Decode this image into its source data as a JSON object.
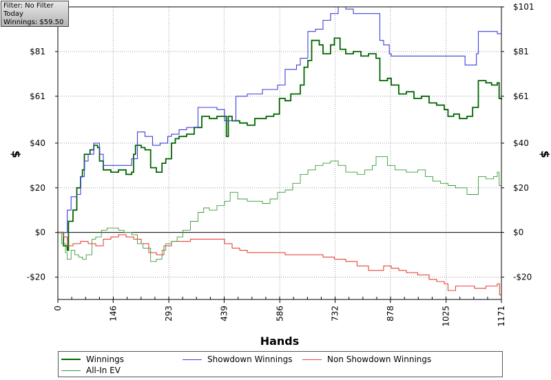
{
  "info_box": {
    "filter": "Filter: No Filter",
    "period": "Today",
    "winnings": "Winnings: $59.50"
  },
  "chart_data": {
    "type": "line",
    "xlabel": "Hands",
    "ylabel": "$",
    "xlim": [
      0,
      1171
    ],
    "ylim": [
      -30,
      101
    ],
    "x_ticks": [
      0,
      146,
      293,
      439,
      586,
      732,
      878,
      1025,
      1171
    ],
    "x_tick_labels": [
      "0",
      "146",
      "293",
      "439",
      "586",
      "732",
      "878",
      "1025",
      "1171"
    ],
    "y_ticks": [
      -20,
      0,
      20,
      40,
      61,
      81,
      101
    ],
    "y_tick_labels": [
      "-$20",
      "$0",
      "$20",
      "$40",
      "$61",
      "$81",
      "$101"
    ],
    "grid": true,
    "legend_position": "bottom",
    "series": [
      {
        "name": "Winnings",
        "color": "#006400",
        "width": 1.8,
        "points": [
          [
            0,
            0
          ],
          [
            15,
            -6
          ],
          [
            25,
            -8
          ],
          [
            28,
            5
          ],
          [
            40,
            10
          ],
          [
            50,
            20
          ],
          [
            60,
            25
          ],
          [
            65,
            28
          ],
          [
            70,
            35
          ],
          [
            85,
            37
          ],
          [
            95,
            39
          ],
          [
            105,
            38
          ],
          [
            110,
            32
          ],
          [
            120,
            28
          ],
          [
            140,
            27
          ],
          [
            160,
            28
          ],
          [
            180,
            26
          ],
          [
            195,
            27
          ],
          [
            200,
            35
          ],
          [
            205,
            39
          ],
          [
            220,
            38
          ],
          [
            230,
            37
          ],
          [
            245,
            29
          ],
          [
            260,
            27
          ],
          [
            275,
            31
          ],
          [
            285,
            33
          ],
          [
            300,
            40
          ],
          [
            310,
            42
          ],
          [
            320,
            43
          ],
          [
            340,
            44
          ],
          [
            360,
            47
          ],
          [
            380,
            52
          ],
          [
            400,
            51
          ],
          [
            420,
            52
          ],
          [
            445,
            43
          ],
          [
            450,
            52
          ],
          [
            460,
            50
          ],
          [
            480,
            49
          ],
          [
            500,
            48
          ],
          [
            520,
            51
          ],
          [
            550,
            52
          ],
          [
            570,
            53
          ],
          [
            585,
            60
          ],
          [
            600,
            59
          ],
          [
            615,
            62
          ],
          [
            640,
            66
          ],
          [
            650,
            74
          ],
          [
            660,
            77
          ],
          [
            670,
            86
          ],
          [
            690,
            84
          ],
          [
            700,
            80
          ],
          [
            720,
            84
          ],
          [
            730,
            87
          ],
          [
            745,
            82
          ],
          [
            760,
            80
          ],
          [
            780,
            81
          ],
          [
            800,
            79
          ],
          [
            820,
            80
          ],
          [
            840,
            78
          ],
          [
            850,
            68
          ],
          [
            870,
            69
          ],
          [
            880,
            66
          ],
          [
            900,
            62
          ],
          [
            920,
            63
          ],
          [
            940,
            60
          ],
          [
            960,
            61
          ],
          [
            980,
            58
          ],
          [
            1000,
            57
          ],
          [
            1020,
            55
          ],
          [
            1030,
            52
          ],
          [
            1045,
            53
          ],
          [
            1060,
            51
          ],
          [
            1080,
            52
          ],
          [
            1095,
            56
          ],
          [
            1110,
            68
          ],
          [
            1130,
            67
          ],
          [
            1145,
            66
          ],
          [
            1160,
            67
          ],
          [
            1165,
            60
          ],
          [
            1171,
            59.5
          ]
        ]
      },
      {
        "name": "Showdown Winnings",
        "color": "#3c3cdc",
        "width": 1.1,
        "points": [
          [
            0,
            0
          ],
          [
            18,
            0
          ],
          [
            25,
            10
          ],
          [
            35,
            16
          ],
          [
            50,
            17
          ],
          [
            60,
            25
          ],
          [
            70,
            32
          ],
          [
            80,
            35
          ],
          [
            95,
            40
          ],
          [
            110,
            35
          ],
          [
            120,
            30
          ],
          [
            140,
            30
          ],
          [
            160,
            30
          ],
          [
            180,
            30
          ],
          [
            195,
            33
          ],
          [
            210,
            45
          ],
          [
            230,
            43
          ],
          [
            250,
            39
          ],
          [
            270,
            40
          ],
          [
            290,
            43
          ],
          [
            300,
            44
          ],
          [
            320,
            46
          ],
          [
            340,
            47
          ],
          [
            370,
            56
          ],
          [
            400,
            56
          ],
          [
            420,
            55
          ],
          [
            440,
            50
          ],
          [
            470,
            61
          ],
          [
            500,
            62
          ],
          [
            540,
            64
          ],
          [
            570,
            64
          ],
          [
            580,
            66
          ],
          [
            600,
            73
          ],
          [
            630,
            75
          ],
          [
            640,
            78
          ],
          [
            660,
            90
          ],
          [
            680,
            91
          ],
          [
            700,
            95
          ],
          [
            720,
            98
          ],
          [
            740,
            101
          ],
          [
            760,
            100
          ],
          [
            780,
            98
          ],
          [
            800,
            98
          ],
          [
            830,
            98
          ],
          [
            850,
            86
          ],
          [
            860,
            84
          ],
          [
            875,
            80
          ],
          [
            880,
            79
          ],
          [
            900,
            79
          ],
          [
            950,
            79
          ],
          [
            1000,
            79
          ],
          [
            1040,
            79
          ],
          [
            1060,
            79
          ],
          [
            1075,
            75
          ],
          [
            1100,
            75
          ],
          [
            1105,
            80
          ],
          [
            1110,
            90
          ],
          [
            1120,
            90
          ],
          [
            1140,
            90
          ],
          [
            1160,
            89
          ],
          [
            1171,
            89
          ]
        ]
      },
      {
        "name": "Non Showdown Winnings",
        "color": "#e8443a",
        "width": 1.1,
        "points": [
          [
            0,
            0
          ],
          [
            15,
            -2
          ],
          [
            25,
            -6
          ],
          [
            40,
            -5
          ],
          [
            60,
            -4
          ],
          [
            80,
            -5
          ],
          [
            100,
            -6
          ],
          [
            120,
            -3
          ],
          [
            140,
            -2
          ],
          [
            160,
            -1
          ],
          [
            180,
            -2
          ],
          [
            200,
            -3
          ],
          [
            220,
            -5
          ],
          [
            240,
            -9
          ],
          [
            260,
            -10
          ],
          [
            280,
            -6
          ],
          [
            300,
            -4
          ],
          [
            320,
            -4
          ],
          [
            350,
            -3
          ],
          [
            380,
            -3
          ],
          [
            400,
            -3
          ],
          [
            420,
            -3
          ],
          [
            440,
            -5
          ],
          [
            460,
            -7
          ],
          [
            480,
            -8
          ],
          [
            500,
            -9
          ],
          [
            520,
            -9
          ],
          [
            560,
            -9
          ],
          [
            580,
            -9
          ],
          [
            600,
            -10
          ],
          [
            650,
            -10
          ],
          [
            700,
            -11
          ],
          [
            730,
            -12
          ],
          [
            760,
            -13
          ],
          [
            790,
            -15
          ],
          [
            820,
            -17
          ],
          [
            840,
            -17
          ],
          [
            860,
            -15
          ],
          [
            880,
            -16
          ],
          [
            900,
            -17
          ],
          [
            920,
            -18
          ],
          [
            950,
            -19
          ],
          [
            980,
            -21
          ],
          [
            1000,
            -22
          ],
          [
            1020,
            -23
          ],
          [
            1030,
            -26
          ],
          [
            1050,
            -24
          ],
          [
            1080,
            -24
          ],
          [
            1100,
            -25
          ],
          [
            1130,
            -24
          ],
          [
            1150,
            -24
          ],
          [
            1160,
            -23
          ],
          [
            1166,
            -28
          ],
          [
            1171,
            -28
          ]
        ]
      },
      {
        "name": "All-In EV",
        "color": "#3a9a3a",
        "width": 0.9,
        "points": [
          [
            0,
            0
          ],
          [
            10,
            -5
          ],
          [
            20,
            -9
          ],
          [
            25,
            -12
          ],
          [
            35,
            -8
          ],
          [
            45,
            -10
          ],
          [
            55,
            -11
          ],
          [
            65,
            -12
          ],
          [
            75,
            -10
          ],
          [
            90,
            -3
          ],
          [
            100,
            -2
          ],
          [
            115,
            1
          ],
          [
            130,
            2
          ],
          [
            145,
            2
          ],
          [
            160,
            1
          ],
          [
            175,
            0
          ],
          [
            195,
            -1
          ],
          [
            210,
            -5
          ],
          [
            225,
            -7
          ],
          [
            245,
            -13
          ],
          [
            260,
            -12
          ],
          [
            275,
            -8
          ],
          [
            285,
            -5
          ],
          [
            300,
            -4
          ],
          [
            315,
            -2
          ],
          [
            330,
            1
          ],
          [
            350,
            5
          ],
          [
            370,
            9
          ],
          [
            385,
            11
          ],
          [
            400,
            10
          ],
          [
            420,
            12
          ],
          [
            440,
            14
          ],
          [
            455,
            18
          ],
          [
            475,
            15
          ],
          [
            500,
            14
          ],
          [
            520,
            14
          ],
          [
            540,
            13
          ],
          [
            560,
            15
          ],
          [
            580,
            18
          ],
          [
            600,
            19
          ],
          [
            620,
            22
          ],
          [
            640,
            26
          ],
          [
            660,
            28
          ],
          [
            680,
            30
          ],
          [
            700,
            31
          ],
          [
            720,
            32
          ],
          [
            740,
            30
          ],
          [
            760,
            27
          ],
          [
            790,
            26
          ],
          [
            810,
            28
          ],
          [
            830,
            30
          ],
          [
            840,
            34
          ],
          [
            855,
            34
          ],
          [
            870,
            30
          ],
          [
            890,
            28
          ],
          [
            920,
            27
          ],
          [
            950,
            28
          ],
          [
            970,
            25
          ],
          [
            990,
            23
          ],
          [
            1010,
            22
          ],
          [
            1030,
            21
          ],
          [
            1050,
            20
          ],
          [
            1080,
            17
          ],
          [
            1100,
            17
          ],
          [
            1110,
            25
          ],
          [
            1130,
            24
          ],
          [
            1150,
            25
          ],
          [
            1160,
            27
          ],
          [
            1165,
            21
          ],
          [
            1171,
            20
          ]
        ]
      }
    ]
  },
  "legend": {
    "winnings": "Winnings",
    "showdown": "Showdown Winnings",
    "non_showdown": "Non Showdown Winnings",
    "all_in_ev": "All-In EV"
  }
}
